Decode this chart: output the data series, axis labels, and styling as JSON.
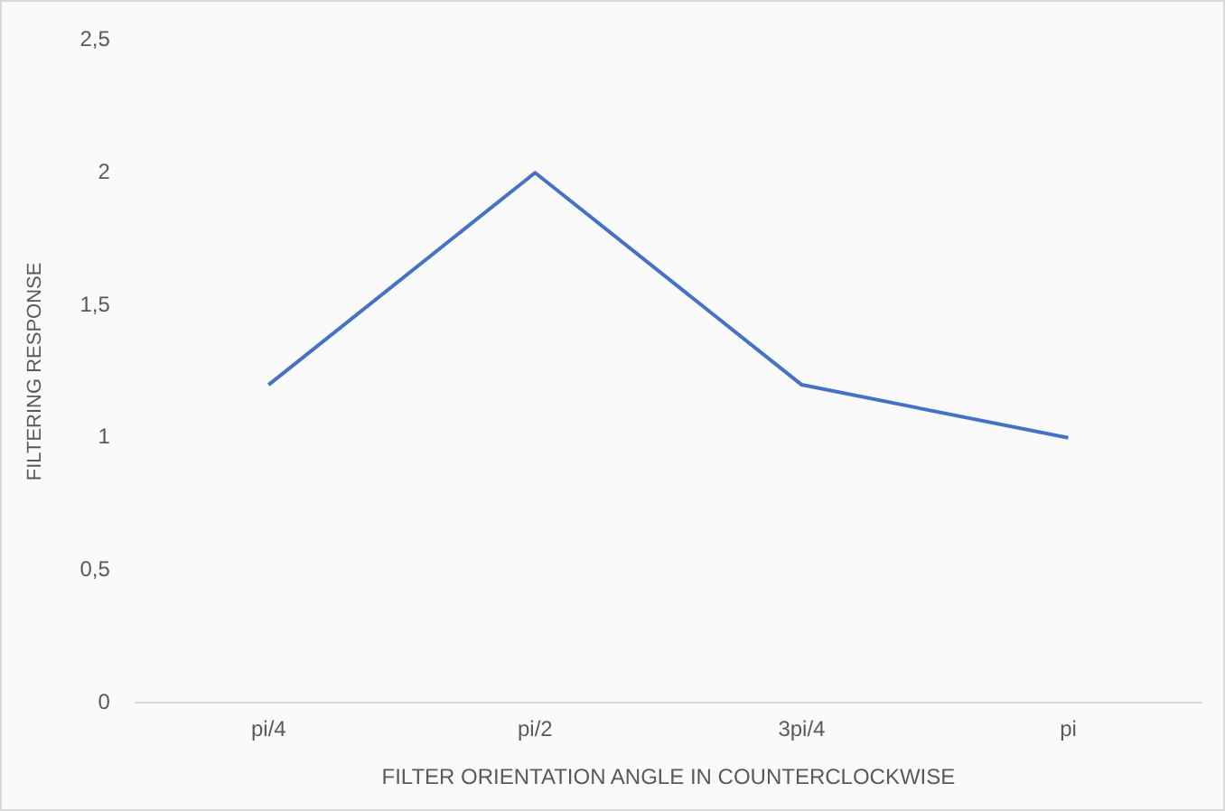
{
  "chart_data": {
    "type": "line",
    "xlabel": "FILTER ORIENTATION ANGLE IN COUNTERCLOCKWISE",
    "ylabel": "FILTERING RESPONSE",
    "categories": [
      "pi/4",
      "pi/2",
      "3pi/4",
      "pi"
    ],
    "series": [
      {
        "color": "#4472c4",
        "values": [
          1.2,
          2,
          1.2,
          1
        ]
      }
    ],
    "ylim": [
      0,
      2.5
    ],
    "yticks": [
      0,
      {
        "value": 0.5,
        "label": "0,5"
      },
      1,
      {
        "value": 1.5,
        "label": "1,5"
      },
      2,
      {
        "value": 2.5,
        "label": "2,5"
      }
    ],
    "grid": false,
    "legend": false,
    "marker": "none",
    "line_style": "solid"
  }
}
